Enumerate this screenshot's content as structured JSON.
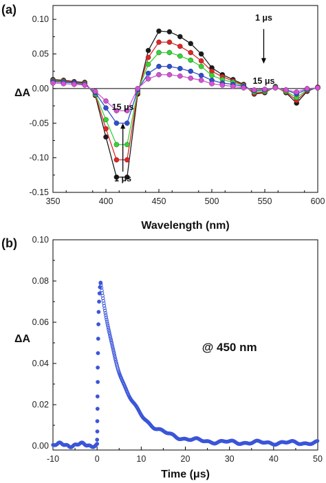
{
  "chart_data": [
    {
      "type": "line",
      "panel_label": "(a)",
      "xlabel": "Wavelength (nm)",
      "ylabel": "ΔA",
      "xlim": [
        350,
        600
      ],
      "ylim": [
        -0.15,
        0.12
      ],
      "xticks": [
        "350",
        "400",
        "450",
        "500",
        "550",
        "600"
      ],
      "yticks": [
        "-0.15",
        "-0.10",
        "-0.05",
        "0.00",
        "0.05",
        "0.10"
      ],
      "zero_line": true,
      "x": [
        350,
        360,
        370,
        380,
        390,
        400,
        410,
        420,
        430,
        440,
        450,
        460,
        470,
        480,
        490,
        500,
        510,
        520,
        530,
        540,
        550,
        560,
        570,
        580,
        590,
        600
      ],
      "series": [
        {
          "color": "#1a1a1a",
          "values": [
            0.013,
            0.012,
            0.01,
            0.009,
            -0.01,
            -0.07,
            -0.128,
            -0.128,
            -0.008,
            0.055,
            0.083,
            0.082,
            0.075,
            0.065,
            0.05,
            0.03,
            0.02,
            0.013,
            0.006,
            -0.008,
            -0.006,
            0.003,
            -0.006,
            -0.021,
            -0.004,
            0.002
          ]
        },
        {
          "color": "#e02424",
          "values": [
            0.012,
            0.011,
            0.009,
            0.008,
            -0.009,
            -0.058,
            -0.103,
            -0.103,
            -0.006,
            0.045,
            0.067,
            0.067,
            0.061,
            0.052,
            0.04,
            0.025,
            0.017,
            0.011,
            0.005,
            -0.007,
            -0.005,
            0.002,
            -0.005,
            -0.017,
            -0.003,
            0.002
          ]
        },
        {
          "color": "#35d435",
          "values": [
            0.011,
            0.01,
            0.008,
            0.007,
            -0.008,
            -0.045,
            -0.081,
            -0.081,
            -0.004,
            0.035,
            0.052,
            0.052,
            0.047,
            0.041,
            0.032,
            0.019,
            0.013,
            0.009,
            0.004,
            -0.005,
            -0.004,
            0.002,
            -0.004,
            -0.013,
            -0.002,
            0.001
          ]
        },
        {
          "color": "#2b4fd1",
          "values": [
            0.01,
            0.009,
            0.008,
            0.006,
            -0.006,
            -0.028,
            -0.05,
            -0.05,
            -0.002,
            0.022,
            0.032,
            0.032,
            0.029,
            0.025,
            0.019,
            0.012,
            0.008,
            0.006,
            0.003,
            -0.003,
            -0.002,
            0.001,
            -0.002,
            -0.008,
            -0.001,
            0.001
          ]
        },
        {
          "color": "#d64fd6",
          "values": [
            0.008,
            0.007,
            0.006,
            0.005,
            -0.004,
            -0.018,
            -0.032,
            -0.032,
            0.0,
            0.014,
            0.02,
            0.02,
            0.018,
            0.015,
            0.012,
            0.007,
            0.005,
            0.003,
            0.001,
            -0.002,
            -0.001,
            0.001,
            -0.002,
            -0.005,
            0.0,
            0.001
          ]
        }
      ],
      "annotations": [
        {
          "text": "1 μs",
          "x": 549,
          "y": 0.098
        },
        {
          "text": "15 μs",
          "x": 549,
          "y": 0.007
        },
        {
          "text": "15 μs",
          "x": 416,
          "y": -0.031
        },
        {
          "text": "1 μs",
          "x": 416,
          "y": -0.134
        }
      ],
      "arrows": [
        {
          "x": 549,
          "from_y": 0.086,
          "to_y": 0.036
        },
        {
          "x": 416,
          "from_y": -0.12,
          "to_y": -0.05
        }
      ]
    },
    {
      "type": "scatter",
      "panel_label": "(b)",
      "xlabel": "Time (μs)",
      "ylabel": "ΔA",
      "xlim": [
        -10,
        50
      ],
      "ylim": [
        -0.002,
        0.1
      ],
      "xticks": [
        "-10",
        "0",
        "10",
        "20",
        "30",
        "40",
        "50"
      ],
      "yticks": [
        "0.00",
        "0.02",
        "0.04",
        "0.06",
        "0.08",
        "0.10"
      ],
      "color": "#3b56d8",
      "annotation": {
        "text": "@ 450 nm",
        "x": 30,
        "y": 0.046
      },
      "decay": {
        "baseline": 0.0015,
        "peak": 0.0785,
        "peak_time": 0.8,
        "tau_us": 5.3,
        "pre_level": 0.0005
      },
      "rise_points": [
        {
          "x": 0.0,
          "y": 0.001
        },
        {
          "x": 0.0,
          "y": 0.003
        },
        {
          "x": 0.05,
          "y": 0.007
        },
        {
          "x": 0.05,
          "y": 0.012
        },
        {
          "x": 0.1,
          "y": 0.018
        },
        {
          "x": 0.1,
          "y": 0.024
        },
        {
          "x": 0.15,
          "y": 0.031
        },
        {
          "x": 0.15,
          "y": 0.038
        },
        {
          "x": 0.2,
          "y": 0.045
        },
        {
          "x": 0.25,
          "y": 0.052
        },
        {
          "x": 0.3,
          "y": 0.059
        },
        {
          "x": 0.35,
          "y": 0.065
        },
        {
          "x": 0.45,
          "y": 0.07
        },
        {
          "x": 0.55,
          "y": 0.074
        },
        {
          "x": 0.65,
          "y": 0.077
        },
        {
          "x": 0.8,
          "y": 0.079
        }
      ]
    }
  ]
}
